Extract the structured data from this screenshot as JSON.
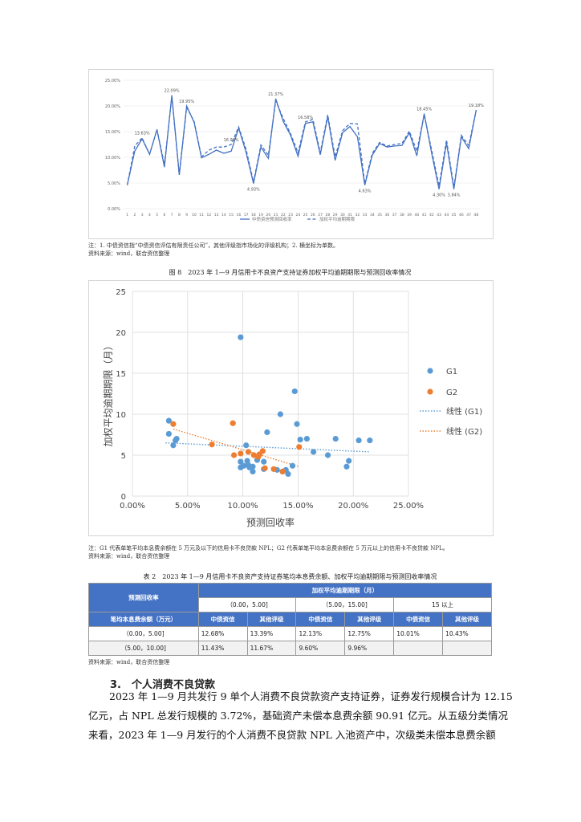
{
  "line_chart": {
    "yticks": [
      "25.00%",
      "20.00%",
      "15.00%",
      "10.00%",
      "5.00%",
      "0.00%"
    ],
    "xticks": [
      "1",
      "2",
      "3",
      "4",
      "5",
      "6",
      "7",
      "8",
      "9",
      "10",
      "11",
      "12",
      "13",
      "14",
      "15",
      "16",
      "17",
      "18",
      "19",
      "20",
      "21",
      "22",
      "23",
      "24",
      "25",
      "26",
      "27",
      "28",
      "29",
      "30",
      "31",
      "32",
      "33",
      "34",
      "35",
      "36",
      "37",
      "38",
      "39",
      "40",
      "41",
      "42",
      "43",
      "44",
      "45",
      "46",
      "47",
      "48"
    ],
    "annotations": [
      "13.63%",
      "22.09%",
      "19.95%",
      "21.37%",
      "16.58%",
      "4.93%",
      "18.45%",
      "19.18%",
      "16.90%",
      "4.63%",
      "4.30%",
      "3.84%"
    ],
    "legend": [
      "中债资信预测回收率",
      "加权平均逾期期限"
    ],
    "series_a": [
      4.6,
      11.2,
      13.6,
      10.6,
      15.4,
      8.1,
      22.1,
      6.6,
      20.0,
      16.8,
      9.9,
      10.6,
      11.4,
      10.8,
      11.2,
      15.7,
      11.0,
      4.9,
      12.0,
      9.8,
      21.4,
      17.0,
      14.3,
      10.2,
      16.6,
      16.9,
      10.5,
      17.9,
      9.4,
      14.8,
      16.0,
      14.0,
      4.6,
      10.4,
      12.7,
      12.0,
      12.2,
      12.3,
      14.8,
      10.3,
      18.5,
      10.8,
      3.8,
      12.8,
      3.8,
      14.0,
      11.7,
      19.2
    ],
    "series_b": [
      4.6,
      12.2,
      13.8,
      10.6,
      15.4,
      8.6,
      21.8,
      6.6,
      19.7,
      17.0,
      10.1,
      11.4,
      12.0,
      12.0,
      12.5,
      15.9,
      11.6,
      5.2,
      12.4,
      10.4,
      21.0,
      17.6,
      14.6,
      10.9,
      16.9,
      17.4,
      10.9,
      18.3,
      10.1,
      15.2,
      16.6,
      16.5,
      4.9,
      10.8,
      12.9,
      12.2,
      12.5,
      12.7,
      15.1,
      11.2,
      18.3,
      11.4,
      4.4,
      13.4,
      4.2,
      14.3,
      12.3,
      19.2
    ]
  },
  "note1": {
    "line1": "注：1. 中债资信指“中债资信评估有限责任公司”，其他评级指市场化的评级机构；2. 横坐标为单数。",
    "line2": "资料来源：wind，联合资信整理"
  },
  "figure8": {
    "caption": "图 8　2023 年 1—9 月信用卡不良资产支持证券加权平均逾期期限与预测回收率情况"
  },
  "chart_data": {
    "type": "scatter",
    "title": "",
    "xlabel": "预测回收率",
    "ylabel": "加权平均逾期期限（月）",
    "xlim": [
      0,
      0.25
    ],
    "ylim": [
      0,
      25
    ],
    "xticks": [
      "0.00%",
      "5.00%",
      "10.00%",
      "15.00%",
      "20.00%",
      "25.00%"
    ],
    "yticks": [
      "0",
      "5",
      "10",
      "15",
      "20",
      "25"
    ],
    "legend_position": "right",
    "series": [
      {
        "name": "G1",
        "color": "#5b9bd5",
        "x": [
          0.033,
          0.033,
          0.037,
          0.039,
          0.04,
          0.098,
          0.098,
          0.098,
          0.101,
          0.103,
          0.104,
          0.105,
          0.106,
          0.109,
          0.109,
          0.113,
          0.119,
          0.119,
          0.122,
          0.131,
          0.134,
          0.136,
          0.139,
          0.141,
          0.145,
          0.147,
          0.149,
          0.152,
          0.158,
          0.164,
          0.177,
          0.184,
          0.194,
          0.196,
          0.205,
          0.215
        ],
        "y": [
          9.2,
          7.6,
          6.2,
          6.8,
          7.0,
          4.2,
          3.5,
          19.4,
          3.7,
          6.2,
          4.3,
          3.8,
          3.5,
          3.0,
          3.6,
          4.4,
          4.2,
          3.3,
          7.8,
          3.2,
          10.0,
          3.0,
          3.2,
          2.7,
          3.7,
          12.8,
          8.8,
          6.9,
          7.0,
          5.4,
          5.0,
          7.0,
          3.6,
          4.3,
          6.8,
          6.8
        ]
      },
      {
        "name": "G2",
        "color": "#ed7d31",
        "x": [
          0.037,
          0.072,
          0.091,
          0.092,
          0.098,
          0.105,
          0.11,
          0.114,
          0.115,
          0.118,
          0.12,
          0.128,
          0.136,
          0.151
        ],
        "y": [
          8.8,
          6.3,
          8.9,
          5.0,
          5.2,
          5.4,
          5.0,
          4.8,
          5.1,
          5.5,
          3.4,
          3.3,
          3.0,
          6.0
        ]
      },
      {
        "name": "线性 (G1)",
        "color": "#5b9bd5",
        "type": "trendline",
        "x": [
          0.03,
          0.215
        ],
        "y": [
          6.5,
          5.4
        ]
      },
      {
        "name": "线性 (G2)",
        "color": "#ed7d31",
        "type": "trendline",
        "x": [
          0.037,
          0.151
        ],
        "y": [
          8.2,
          3.6
        ]
      }
    ]
  },
  "note2": {
    "line1": "注：G1 代表单笔平均本息费余额在 5 万元及以下的信用卡不良贷款 NPL；G2 代表单笔平均本息费余额在 5 万元以上的信用卡不良贷款 NPL。",
    "line2": "资料来源：wind，联合资信整理"
  },
  "table2": {
    "caption": "表 2　2023 年 1—9 月信用卡不良资产支持证券笔均本息费余额、加权平均逾期期限与预测回收率情况",
    "h_recovery": "预测回收率",
    "h_overdue": "加权平均逾期期限（月）",
    "ranges": [
      "（0.00，5.00]",
      "（5.00，15.00]",
      "15 以上"
    ],
    "h_balance": "笔均本息费余额（万元）",
    "cols": [
      "中债资信",
      "其他评级",
      "中债资信",
      "其他评级",
      "中债资信",
      "其他评级"
    ],
    "rows": [
      {
        "label": "（0.00，5.00]",
        "cells": [
          "12.68%",
          "13.39%",
          "12.13%",
          "12.75%",
          "10.01%",
          "10.43%"
        ]
      },
      {
        "label": "（5.00，10.00]",
        "cells": [
          "11.43%",
          "11.67%",
          "9.60%",
          "9.96%",
          "",
          ""
        ]
      }
    ],
    "source": "资料来源：wind，联合资信整理"
  },
  "section": {
    "heading": "3.　个人消费不良贷款",
    "lines": [
      "2023 年 1—9 月共发行 9 单个人消费不良贷款资产支持证券，证券发行规模合计为 12.15",
      "亿元，占 NPL 总发行规模的 3.72%，基础资产未偿本息费余额 90.91 亿元。从五级分类情况",
      "来看，2023 年 1—9 月发行的个人消费不良贷款 NPL 入池资产中，次级类未偿本息费余额"
    ]
  }
}
